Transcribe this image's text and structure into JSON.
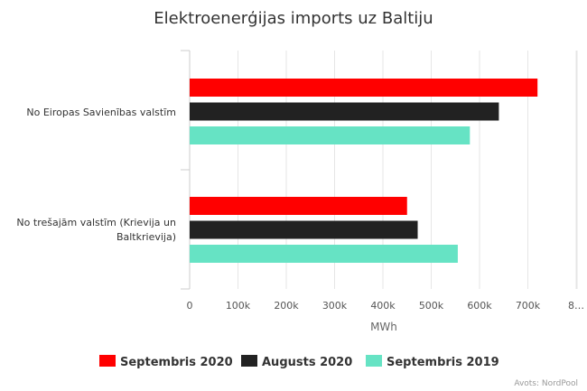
{
  "chart_data": {
    "type": "bar",
    "orientation": "horizontal",
    "title": "Elektroenerģijas imports uz Baltiju",
    "categories": [
      [
        "No Eiropas Savienības valstīm"
      ],
      [
        "No trešajām valstīm (Krievija un",
        "Baltkrievija)"
      ]
    ],
    "series": [
      {
        "name": "Septembris 2020",
        "color": "#ff0000",
        "values": [
          720000,
          450000
        ]
      },
      {
        "name": "Augusts 2020",
        "color": "#222222",
        "values": [
          640000,
          472000
        ]
      },
      {
        "name": "Septembris 2019",
        "color": "#66e3c4",
        "values": [
          580000,
          555000
        ]
      }
    ],
    "xlabel": "MWh",
    "xlim": [
      0,
      800000
    ],
    "ticks": [
      "0",
      "100k",
      "200k",
      "300k",
      "400k",
      "500k",
      "600k",
      "700k",
      "8…"
    ],
    "grid": true,
    "legend": "bottom",
    "credits": "Avots: NordPool"
  }
}
